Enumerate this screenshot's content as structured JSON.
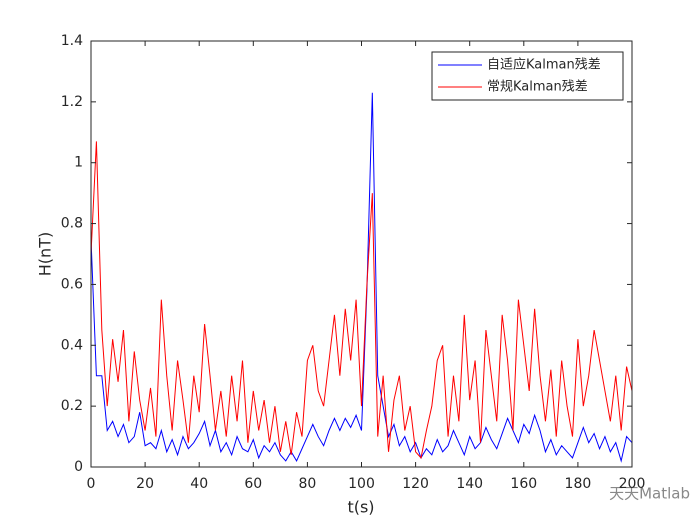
{
  "chart_data": {
    "type": "line",
    "xlabel": "t(s)",
    "ylabel": "H(nT)",
    "watermark": "天天Matlab",
    "x": [
      0,
      2,
      4,
      6,
      8,
      10,
      12,
      14,
      16,
      18,
      20,
      22,
      24,
      26,
      28,
      30,
      32,
      34,
      36,
      38,
      40,
      42,
      44,
      46,
      48,
      50,
      52,
      54,
      56,
      58,
      60,
      62,
      64,
      66,
      68,
      70,
      72,
      74,
      76,
      78,
      80,
      82,
      84,
      86,
      88,
      90,
      92,
      94,
      96,
      98,
      100,
      102,
      104,
      106,
      108,
      110,
      112,
      114,
      116,
      118,
      120,
      122,
      124,
      126,
      128,
      130,
      132,
      134,
      136,
      138,
      140,
      142,
      144,
      146,
      148,
      150,
      152,
      154,
      156,
      158,
      160,
      162,
      164,
      166,
      168,
      170,
      172,
      174,
      176,
      178,
      180,
      182,
      184,
      186,
      188,
      190,
      192,
      194,
      196,
      198,
      200
    ],
    "series": [
      {
        "name": "自适应Kalman残差",
        "color": "#0000ff",
        "values": [
          0.75,
          0.3,
          0.3,
          0.12,
          0.15,
          0.1,
          0.14,
          0.08,
          0.1,
          0.18,
          0.07,
          0.08,
          0.06,
          0.12,
          0.05,
          0.09,
          0.04,
          0.1,
          0.06,
          0.08,
          0.11,
          0.15,
          0.07,
          0.12,
          0.05,
          0.08,
          0.04,
          0.1,
          0.06,
          0.05,
          0.09,
          0.03,
          0.07,
          0.05,
          0.08,
          0.04,
          0.02,
          0.05,
          0.02,
          0.06,
          0.1,
          0.14,
          0.1,
          0.07,
          0.12,
          0.16,
          0.12,
          0.16,
          0.13,
          0.17,
          0.12,
          0.58,
          1.23,
          0.3,
          0.2,
          0.1,
          0.14,
          0.07,
          0.1,
          0.05,
          0.08,
          0.03,
          0.06,
          0.04,
          0.09,
          0.05,
          0.07,
          0.12,
          0.08,
          0.04,
          0.1,
          0.06,
          0.08,
          0.13,
          0.09,
          0.06,
          0.11,
          0.16,
          0.12,
          0.08,
          0.14,
          0.11,
          0.17,
          0.12,
          0.05,
          0.09,
          0.04,
          0.07,
          0.05,
          0.03,
          0.08,
          0.13,
          0.08,
          0.11,
          0.06,
          0.1,
          0.05,
          0.08,
          0.02,
          0.1,
          0.08
        ]
      },
      {
        "name": "常规Kalman残差",
        "color": "#ff0000",
        "values": [
          0.7,
          1.07,
          0.45,
          0.2,
          0.42,
          0.28,
          0.45,
          0.15,
          0.38,
          0.22,
          0.12,
          0.26,
          0.1,
          0.55,
          0.3,
          0.12,
          0.35,
          0.22,
          0.08,
          0.3,
          0.18,
          0.47,
          0.3,
          0.12,
          0.25,
          0.1,
          0.3,
          0.15,
          0.35,
          0.08,
          0.25,
          0.12,
          0.22,
          0.08,
          0.2,
          0.05,
          0.15,
          0.04,
          0.18,
          0.1,
          0.35,
          0.4,
          0.25,
          0.2,
          0.35,
          0.5,
          0.3,
          0.52,
          0.35,
          0.55,
          0.2,
          0.6,
          0.9,
          0.1,
          0.3,
          0.05,
          0.22,
          0.3,
          0.12,
          0.2,
          0.05,
          0.03,
          0.12,
          0.2,
          0.35,
          0.4,
          0.1,
          0.3,
          0.15,
          0.5,
          0.22,
          0.35,
          0.08,
          0.45,
          0.3,
          0.15,
          0.5,
          0.35,
          0.12,
          0.55,
          0.4,
          0.25,
          0.52,
          0.3,
          0.15,
          0.32,
          0.1,
          0.35,
          0.2,
          0.1,
          0.42,
          0.2,
          0.3,
          0.45,
          0.35,
          0.25,
          0.15,
          0.3,
          0.12,
          0.33,
          0.25
        ]
      }
    ],
    "xlim": [
      0,
      200
    ],
    "xticks": [
      0,
      20,
      40,
      60,
      80,
      100,
      120,
      140,
      160,
      180,
      200
    ],
    "ylim": [
      0,
      1.4
    ],
    "yticks": [
      0,
      0.2,
      0.4,
      0.6,
      0.8,
      1,
      1.2,
      1.4
    ],
    "legend": "upper right"
  }
}
